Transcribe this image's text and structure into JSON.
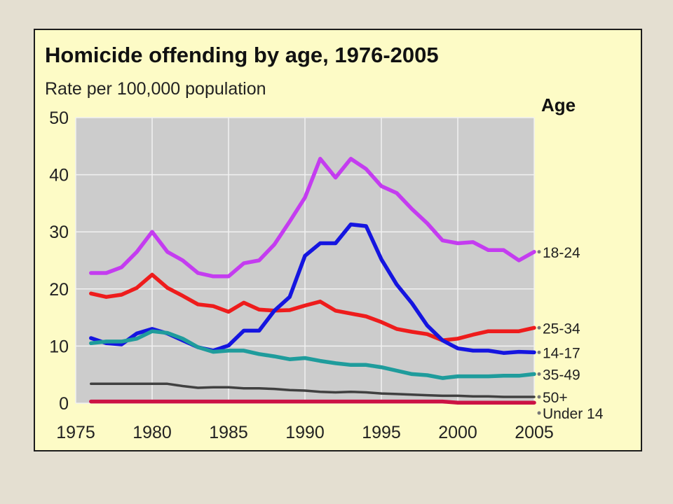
{
  "chart_data": {
    "type": "line",
    "title": "Homicide offending by age, 1976-2005",
    "subtitle": "Rate per 100,000 population",
    "legend_title": "Age",
    "xlabel": "",
    "ylabel": "",
    "xlim": [
      1975,
      2005
    ],
    "ylim": [
      0,
      50
    ],
    "x_ticks": [
      1975,
      1980,
      1985,
      1990,
      1995,
      2000,
      2005
    ],
    "y_ticks": [
      0,
      10,
      20,
      30,
      40,
      50
    ],
    "grid": true,
    "legend_placement": "right, labels at line ends",
    "x": [
      1976,
      1977,
      1978,
      1979,
      1980,
      1981,
      1982,
      1983,
      1984,
      1985,
      1986,
      1987,
      1988,
      1989,
      1990,
      1991,
      1992,
      1993,
      1994,
      1995,
      1996,
      1997,
      1998,
      1999,
      2000,
      2001,
      2002,
      2003,
      2004,
      2005
    ],
    "series": [
      {
        "name": "18-24",
        "color": "#c43cf0",
        "values": [
          22.8,
          22.8,
          23.8,
          26.5,
          30.0,
          26.5,
          25.0,
          22.8,
          22.2,
          22.2,
          24.5,
          25.0,
          27.8,
          31.8,
          36.0,
          42.8,
          39.5,
          42.8,
          41.0,
          38.0,
          36.8,
          34.0,
          31.5,
          28.5,
          28.0,
          28.2,
          26.8,
          26.8,
          25.0,
          26.5
        ]
      },
      {
        "name": "25-34",
        "color": "#ee1c1c",
        "values": [
          19.2,
          18.6,
          19.0,
          20.2,
          22.5,
          20.2,
          18.8,
          17.3,
          17.0,
          16.0,
          17.6,
          16.4,
          16.2,
          16.3,
          17.1,
          17.8,
          16.2,
          15.7,
          15.2,
          14.2,
          13.0,
          12.5,
          12.1,
          11.0,
          11.3,
          12.0,
          12.6,
          12.6,
          12.6,
          13.2
        ]
      },
      {
        "name": "14-17",
        "color": "#1515e0",
        "values": [
          11.4,
          10.5,
          10.3,
          12.2,
          13.0,
          12.2,
          11.0,
          9.8,
          9.2,
          10.1,
          12.7,
          12.7,
          16.2,
          18.6,
          25.8,
          28.0,
          28.0,
          31.3,
          31.0,
          25.2,
          20.8,
          17.5,
          13.6,
          11.0,
          9.6,
          9.2,
          9.2,
          8.8,
          9.0,
          8.9
        ]
      },
      {
        "name": "35-49",
        "color": "#1f9c9c",
        "values": [
          10.5,
          10.8,
          10.8,
          11.3,
          12.6,
          12.3,
          11.3,
          9.8,
          9.0,
          9.2,
          9.2,
          8.6,
          8.2,
          7.7,
          7.9,
          7.4,
          7.0,
          6.7,
          6.7,
          6.3,
          5.7,
          5.1,
          4.9,
          4.4,
          4.7,
          4.7,
          4.7,
          4.8,
          4.8,
          5.1
        ]
      },
      {
        "name": "50+",
        "color": "#404040",
        "values": [
          3.4,
          3.4,
          3.4,
          3.4,
          3.4,
          3.4,
          3.0,
          2.7,
          2.8,
          2.8,
          2.6,
          2.6,
          2.5,
          2.3,
          2.2,
          2.0,
          1.9,
          2.0,
          1.9,
          1.7,
          1.6,
          1.5,
          1.4,
          1.3,
          1.3,
          1.2,
          1.2,
          1.1,
          1.1,
          1.1
        ]
      },
      {
        "name": "Under 14",
        "color": "#cc1244",
        "values": [
          0.3,
          0.3,
          0.3,
          0.3,
          0.3,
          0.3,
          0.3,
          0.3,
          0.3,
          0.3,
          0.3,
          0.3,
          0.3,
          0.3,
          0.3,
          0.3,
          0.3,
          0.3,
          0.3,
          0.3,
          0.3,
          0.3,
          0.3,
          0.3,
          0.1,
          0.1,
          0.1,
          0.1,
          0.1,
          0.1
        ]
      }
    ]
  }
}
